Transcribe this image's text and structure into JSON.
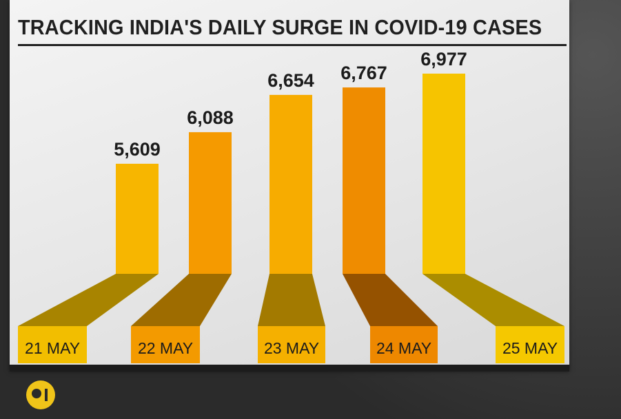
{
  "chart_data": {
    "type": "bar",
    "title": "TRACKING INDIA'S DAILY SURGE IN COVID-19 CASES",
    "categories": [
      "21 MAY",
      "22 MAY",
      "23 MAY",
      "24 MAY",
      "25 MAY"
    ],
    "values": [
      5609,
      6088,
      6654,
      6767,
      6977
    ],
    "value_labels": [
      "5,609",
      "6,088",
      "6,654",
      "6,767",
      "6,977"
    ],
    "grid": false,
    "legend": "none",
    "colors": {
      "bars": [
        "#f7b600",
        "#f59a00",
        "#f7ac00",
        "#ef8c00",
        "#f6c400"
      ],
      "bases": [
        "#f2be00",
        "#f39a00",
        "#f5b000",
        "#ee8800",
        "#f5c800"
      ],
      "shadows": [
        "#a88400",
        "#9e6c00",
        "#a37a00",
        "#955200",
        "#ab8d00"
      ]
    }
  },
  "branding": {
    "logo_icon": "wion-logo-icon"
  }
}
